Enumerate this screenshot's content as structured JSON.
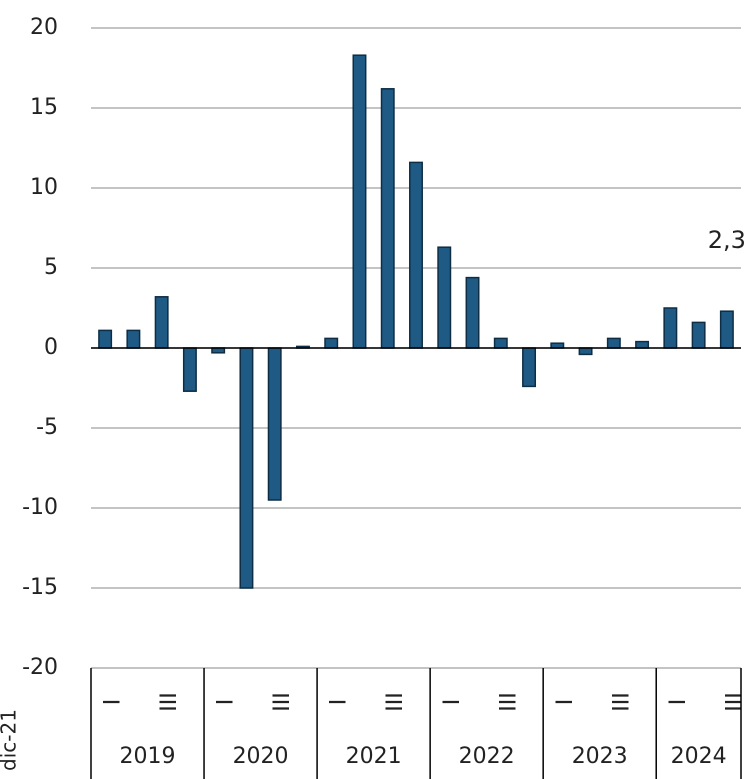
{
  "chart_data": {
    "type": "bar",
    "categories": [
      "I",
      null,
      "III",
      null,
      "I",
      null,
      "III",
      null,
      "I",
      null,
      "III",
      null,
      "I",
      null,
      "III",
      null,
      "I",
      null,
      "III",
      null,
      "I",
      null,
      "III"
    ],
    "groups": [
      {
        "name": "2019",
        "count": 4
      },
      {
        "name": "2020",
        "count": 4
      },
      {
        "name": "2021",
        "count": 4
      },
      {
        "name": "2022",
        "count": 4
      },
      {
        "name": "2023",
        "count": 4
      },
      {
        "name": "2024",
        "count": 3
      }
    ],
    "values": [
      1.1,
      1.1,
      3.2,
      -2.7,
      -0.3,
      -15.0,
      -9.5,
      0.1,
      0.6,
      18.3,
      16.2,
      11.6,
      6.3,
      4.4,
      0.6,
      -2.4,
      0.3,
      -0.4,
      0.6,
      0.4,
      2.5,
      1.6,
      2.3
    ],
    "value_labels": [
      null,
      null,
      null,
      null,
      null,
      null,
      null,
      null,
      null,
      null,
      null,
      null,
      null,
      null,
      null,
      null,
      null,
      null,
      null,
      null,
      null,
      null,
      "2,3"
    ],
    "color": "#1f5a85",
    "ylim": [
      -20,
      20
    ],
    "yticks": [
      {
        "value": -20,
        "label": "-20"
      },
      {
        "value": -15,
        "label": "-15"
      },
      {
        "value": -10,
        "label": "-10"
      },
      {
        "value": -5,
        "label": "-5"
      },
      0,
      5,
      10,
      15,
      20
    ],
    "grid": true,
    "side_label": "dic-21"
  }
}
